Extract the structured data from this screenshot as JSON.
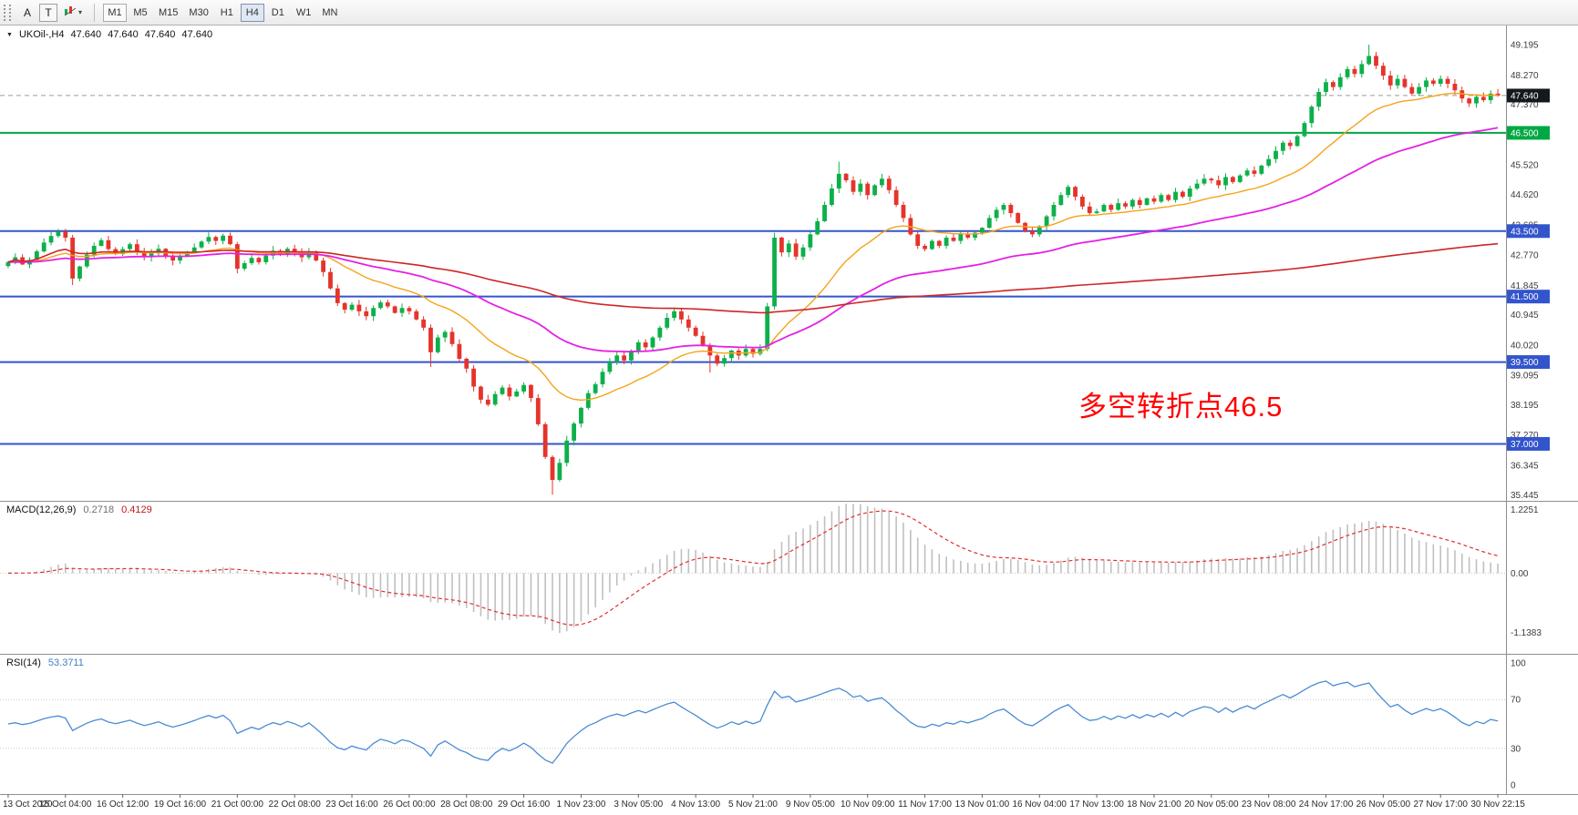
{
  "toolbar": {
    "button_a": "A",
    "button_t": "T",
    "timeframes": [
      "M1",
      "M5",
      "M15",
      "M30",
      "H1",
      "H4",
      "D1",
      "W1",
      "MN"
    ],
    "active_timeframe": "H4",
    "outlined_timeframe": "M1"
  },
  "icons": {
    "caret": "▾",
    "collapse": "▼"
  },
  "chart": {
    "symbol_label": "UKOil-,H4",
    "open": "47.640",
    "high": "47.640",
    "low": "47.640",
    "close": "47.640",
    "last_price_label": "47.640",
    "annotation_text": "多空转折点46.5",
    "annotation_color": "#ff0000"
  },
  "indicators": {
    "macd": {
      "label": "MACD(12,26,9)",
      "value_main": "0.2718",
      "value_signal": "0.4129"
    },
    "rsi": {
      "label": "RSI(14)",
      "value": "53.3711"
    }
  },
  "chart_data": {
    "type": "candlestick",
    "symbol": "UKOil-",
    "timeframe": "H4",
    "price_range": {
      "min": 35.26,
      "max": 49.78
    },
    "closes": [
      42.55,
      42.7,
      42.48,
      42.62,
      42.88,
      43.15,
      43.35,
      43.48,
      43.3,
      42.05,
      42.42,
      42.78,
      43.05,
      43.22,
      42.95,
      42.8,
      42.95,
      43.1,
      42.88,
      42.7,
      42.82,
      42.96,
      42.75,
      42.6,
      42.72,
      42.85,
      43.0,
      43.18,
      43.32,
      43.2,
      43.36,
      43.1,
      42.35,
      42.52,
      42.68,
      42.55,
      42.75,
      42.9,
      42.8,
      42.96,
      42.85,
      42.7,
      42.88,
      42.6,
      42.25,
      41.75,
      41.3,
      41.1,
      41.25,
      41.05,
      40.9,
      41.15,
      41.32,
      41.2,
      41.0,
      41.15,
      41.05,
      40.8,
      40.55,
      39.8,
      40.25,
      40.42,
      40.05,
      39.6,
      39.3,
      38.75,
      38.35,
      38.2,
      38.52,
      38.72,
      38.45,
      38.6,
      38.8,
      38.4,
      37.6,
      36.6,
      35.9,
      36.42,
      37.1,
      37.62,
      38.1,
      38.55,
      38.82,
      39.2,
      39.5,
      39.7,
      39.55,
      39.85,
      40.1,
      39.95,
      40.25,
      40.55,
      40.85,
      41.05,
      40.8,
      40.55,
      40.3,
      40.0,
      39.7,
      39.45,
      39.62,
      39.85,
      39.7,
      39.9,
      39.75,
      39.9,
      41.2,
      43.3,
      42.85,
      43.12,
      42.72,
      43.0,
      43.4,
      43.8,
      44.3,
      44.8,
      45.25,
      45.05,
      44.7,
      44.95,
      44.6,
      44.9,
      45.1,
      44.75,
      44.3,
      43.9,
      43.4,
      43.05,
      42.95,
      43.2,
      43.05,
      43.3,
      43.2,
      43.42,
      43.3,
      43.45,
      43.6,
      43.9,
      44.15,
      44.3,
      44.05,
      43.75,
      43.5,
      43.4,
      43.65,
      43.95,
      44.3,
      44.6,
      44.85,
      44.55,
      44.25,
      44.05,
      44.1,
      44.3,
      44.15,
      44.35,
      44.25,
      44.45,
      44.3,
      44.5,
      44.4,
      44.6,
      44.45,
      44.7,
      44.55,
      44.8,
      44.95,
      45.1,
      45.05,
      44.9,
      45.15,
      45.0,
      45.2,
      45.35,
      45.25,
      45.5,
      45.7,
      45.95,
      46.2,
      46.1,
      46.4,
      46.8,
      47.3,
      47.75,
      48.05,
      47.9,
      48.2,
      48.45,
      48.3,
      48.6,
      48.85,
      48.55,
      48.25,
      47.95,
      48.15,
      47.9,
      47.7,
      47.9,
      48.1,
      48.0,
      48.15,
      48.0,
      47.8,
      47.55,
      47.4,
      47.6,
      47.5,
      47.7,
      47.64
    ],
    "wicks": {
      "9": {
        "low": 41.85
      },
      "59": {
        "low": 39.35
      },
      "76": {
        "low": 35.445
      },
      "98": {
        "low": 39.18
      },
      "107": {
        "high": 43.45
      },
      "116": {
        "high": 45.62
      },
      "190": {
        "high": 49.195
      }
    },
    "colors": {
      "up": "#0cb04a",
      "down": "#e5342b",
      "macd_hist": "#c0c0c0",
      "macd_signal": "#e03030",
      "rsi_line": "#4a8bd5"
    },
    "ma_colors": {
      "fast": "#f5a31a",
      "mid": "#e421e4",
      "slow": "#cf2525"
    },
    "hlines": [
      {
        "price": 46.5,
        "label": "46.500",
        "color": "#00a843"
      },
      {
        "price": 43.5,
        "label": "43.500",
        "color": "#3355cc"
      },
      {
        "price": 41.5,
        "label": "41.500",
        "color": "#3355cc"
      },
      {
        "price": 39.5,
        "label": "39.500",
        "color": "#3355cc"
      },
      {
        "price": 37.0,
        "label": "37.000",
        "color": "#3355cc"
      }
    ],
    "last_price": 47.64,
    "y_ticks": [
      "49.195",
      "48.270",
      "47.370",
      "45.520",
      "44.620",
      "43.685",
      "42.770",
      "41.845",
      "40.945",
      "40.020",
      "39.095",
      "38.195",
      "37.270",
      "36.345",
      "35.445"
    ],
    "macd_axis": [
      "1.2251",
      "0.00",
      "-1.1383"
    ],
    "rsi_axis": [
      "100",
      "70",
      "30",
      "0"
    ],
    "rsi_levels": [
      70,
      30
    ],
    "time_labels": [
      "13 Oct 2020",
      "15 Oct 04:00",
      "16 Oct 12:00",
      "19 Oct 16:00",
      "21 Oct 00:00",
      "22 Oct 08:00",
      "23 Oct 16:00",
      "26 Oct 00:00",
      "28 Oct 08:00",
      "29 Oct 16:00",
      "1 Nov 23:00",
      "3 Nov 05:00",
      "4 Nov 13:00",
      "5 Nov 21:00",
      "9 Nov 05:00",
      "10 Nov 09:00",
      "11 Nov 17:00",
      "13 Nov 01:00",
      "16 Nov 04:00",
      "17 Nov 13:00",
      "18 Nov 21:00",
      "20 Nov 05:00",
      "23 Nov 08:00",
      "24 Nov 17:00",
      "26 Nov 05:00",
      "27 Nov 17:00",
      "30 Nov 22:15"
    ]
  }
}
